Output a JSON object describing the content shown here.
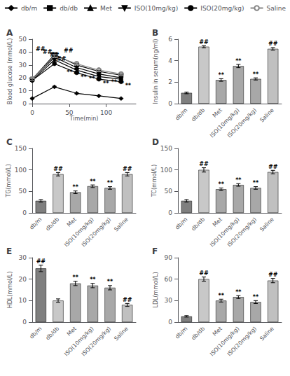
{
  "chart_data": [
    {
      "type": "line",
      "title": "A",
      "xlabel": "Time(min)",
      "ylabel": "Blood glucose (mmol/L)",
      "x": [
        0,
        30,
        60,
        90,
        120
      ],
      "xlim": [
        0,
        140
      ],
      "xticks": [
        0,
        50,
        100
      ],
      "ylim": [
        0,
        50
      ],
      "yticks": [
        0,
        10,
        20,
        30,
        40,
        50
      ],
      "grid": false,
      "legend": "top",
      "series": [
        {
          "name": "db/m",
          "color": "#000000",
          "marker": "diamond",
          "values": [
            4,
            13,
            8,
            6,
            4
          ],
          "errors": [
            0.3,
            0.5,
            0.4,
            0.3,
            0.2
          ]
        },
        {
          "name": "db/db",
          "color": "#000000",
          "marker": "square",
          "values": [
            19,
            38,
            30,
            25,
            22
          ],
          "errors": [
            0.8,
            1.2,
            1.0,
            0.9,
            0.8
          ],
          "significance": [
            null,
            "##",
            null,
            null,
            null
          ]
        },
        {
          "name": "Met",
          "color": "#000000",
          "marker": "triangle-up",
          "values": [
            19,
            36,
            28,
            23,
            20
          ],
          "errors": [
            0.7,
            1.0,
            0.9,
            0.8,
            0.7
          ],
          "significance": [
            null,
            "##",
            "**",
            "**",
            "**"
          ]
        },
        {
          "name": "ISO(10mg/kg)",
          "color": "#000000",
          "marker": "triangle-down",
          "values": [
            18,
            34,
            26,
            21,
            19
          ],
          "errors": [
            0.7,
            1.0,
            0.8,
            0.7,
            0.6
          ],
          "significance": [
            null,
            "##",
            "**",
            "**",
            "**"
          ]
        },
        {
          "name": "ISO(20mg/kg)",
          "color": "#000000",
          "marker": "circle",
          "values": [
            18,
            31,
            24,
            19,
            17
          ],
          "errors": [
            0.7,
            0.9,
            0.7,
            0.6,
            0.5
          ],
          "significance": [
            null,
            "##",
            "**",
            "**",
            "**"
          ]
        },
        {
          "name": "Saline",
          "color": "#888888",
          "marker": "open-circle",
          "values": [
            19,
            37,
            31,
            26,
            23
          ],
          "errors": [
            0.8,
            1.1,
            1.0,
            0.9,
            0.8
          ],
          "significance": [
            null,
            "##",
            null,
            null,
            null
          ]
        }
      ]
    },
    {
      "type": "bar",
      "title": "B",
      "ylabel": "Insulin in serum(ng/ml)",
      "categories": [
        "db/m",
        "db/db",
        "Met",
        "ISO(10mg/kg)",
        "ISO(20mg/kg)",
        "Saline"
      ],
      "values": [
        1.0,
        5.3,
        2.2,
        3.5,
        2.3,
        5.1
      ],
      "errors": [
        0.08,
        0.1,
        0.12,
        0.15,
        0.1,
        0.12
      ],
      "colors": [
        "#7f7f7f",
        "#c8c8c8",
        "#a8a8a8",
        "#a8a8a8",
        "#a8a8a8",
        "#c0c0c0"
      ],
      "significance": [
        null,
        "##",
        "**",
        "**",
        "**",
        "##"
      ],
      "ylim": [
        0,
        6
      ],
      "yticks": [
        0,
        2,
        4,
        6
      ],
      "grid": false
    },
    {
      "type": "bar",
      "title": "C",
      "ylabel": "TG(mmol/L)",
      "categories": [
        "db/m",
        "db/db",
        "Met",
        "ISO(10mg/kg)",
        "ISO(20mg/kg)",
        "Saline"
      ],
      "values": [
        28,
        90,
        48,
        62,
        58,
        90
      ],
      "errors": [
        3,
        4,
        3,
        3,
        3,
        4
      ],
      "colors": [
        "#7f7f7f",
        "#c8c8c8",
        "#a8a8a8",
        "#a8a8a8",
        "#a8a8a8",
        "#c0c0c0"
      ],
      "significance": [
        null,
        "##",
        "**",
        "**",
        "**",
        "##"
      ],
      "ylim": [
        0,
        150
      ],
      "yticks": [
        0,
        50,
        100,
        150
      ],
      "grid": false
    },
    {
      "type": "bar",
      "title": "D",
      "ylabel": "TC(mmol/L)",
      "categories": [
        "db/m",
        "db/db",
        "Met",
        "ISO(10mg/kg)",
        "ISO(20mg/kg)",
        "Saline"
      ],
      "values": [
        28,
        100,
        55,
        65,
        58,
        95
      ],
      "errors": [
        3,
        5,
        3,
        3,
        3,
        4
      ],
      "colors": [
        "#7f7f7f",
        "#c8c8c8",
        "#a8a8a8",
        "#a8a8a8",
        "#a8a8a8",
        "#c0c0c0"
      ],
      "significance": [
        null,
        "##",
        "**",
        "**",
        "**",
        "##"
      ],
      "ylim": [
        0,
        150
      ],
      "yticks": [
        0,
        50,
        100,
        150
      ],
      "grid": false
    },
    {
      "type": "bar",
      "title": "E",
      "ylabel": "HDL(mmol/L)",
      "categories": [
        "db/m",
        "db/db",
        "Met",
        "ISO(10mg/kg)",
        "ISO(20mg/kg)",
        "Saline"
      ],
      "values": [
        25,
        10,
        18,
        17,
        16,
        8
      ],
      "errors": [
        1.5,
        0.8,
        1.0,
        1.0,
        1.0,
        0.7
      ],
      "colors": [
        "#7f7f7f",
        "#c8c8c8",
        "#a8a8a8",
        "#a8a8a8",
        "#a8a8a8",
        "#c0c0c0"
      ],
      "significance": [
        "##",
        null,
        "**",
        "**",
        "**",
        "##"
      ],
      "ylim": [
        0,
        30
      ],
      "yticks": [
        0,
        10,
        20,
        30
      ],
      "grid": false
    },
    {
      "type": "bar",
      "title": "F",
      "ylabel": "LDL(mmol/L)",
      "categories": [
        "db/m",
        "db/db",
        "Met",
        "ISO(10mg/kg)",
        "ISO(20mg/kg)",
        "Saline"
      ],
      "values": [
        8,
        60,
        30,
        35,
        28,
        58
      ],
      "errors": [
        1.0,
        3.0,
        2.0,
        2.0,
        2.0,
        3.0
      ],
      "colors": [
        "#7f7f7f",
        "#c8c8c8",
        "#a8a8a8",
        "#a8a8a8",
        "#a8a8a8",
        "#c0c0c0"
      ],
      "significance": [
        null,
        "##",
        "**",
        "**",
        "**",
        "##"
      ],
      "ylim": [
        0,
        90
      ],
      "yticks": [
        0,
        30,
        60,
        90
      ],
      "grid": false
    }
  ]
}
